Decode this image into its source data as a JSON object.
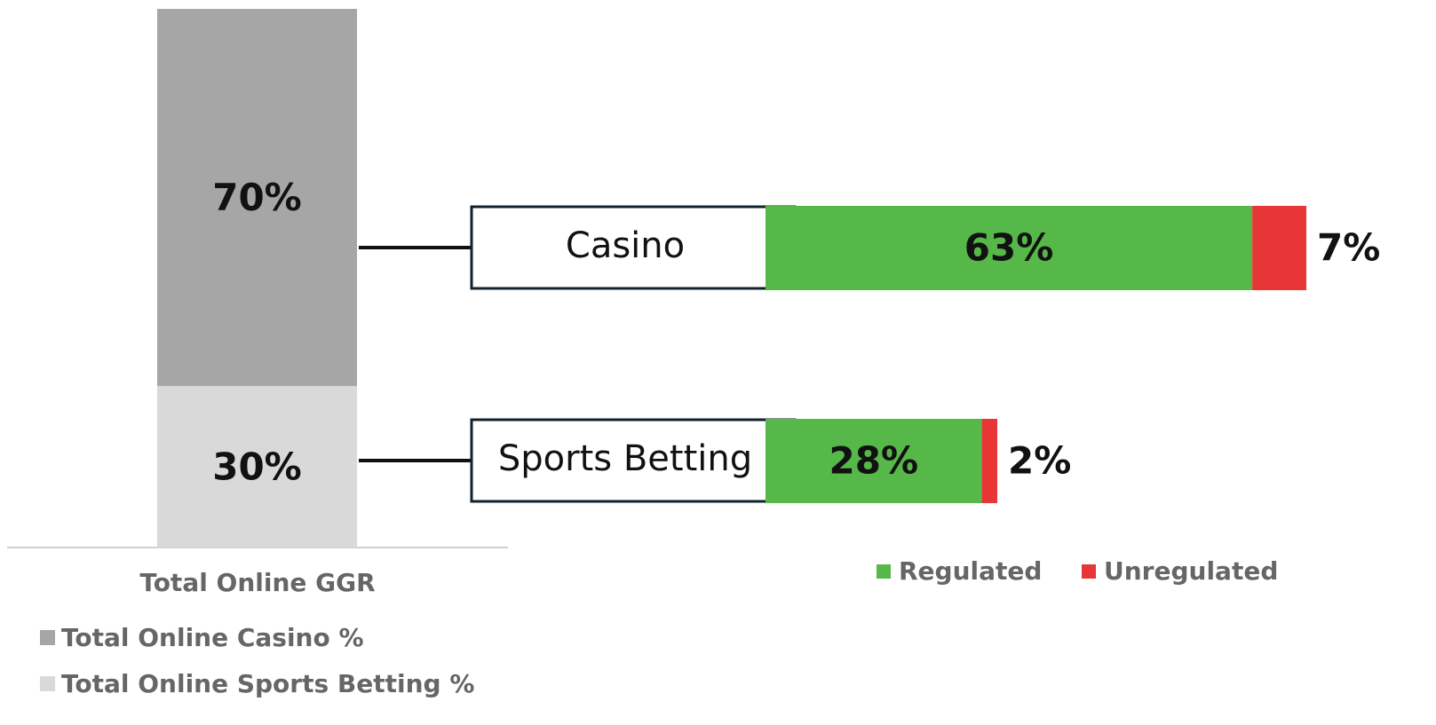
{
  "chart_data": [
    {
      "type": "stacked-bar",
      "categories": [
        "Total Online GGR"
      ],
      "series": [
        {
          "name": "Total Online Casino %",
          "color": "#a6a6a6",
          "values": [
            70
          ],
          "value_labels": [
            "70%"
          ]
        },
        {
          "name": "Total Online Sports Betting %",
          "color": "#d9d9d9",
          "values": [
            30
          ],
          "value_labels": [
            "30%"
          ]
        }
      ],
      "ylim": [
        0,
        100
      ]
    },
    {
      "type": "stacked-hbar",
      "categories": [
        "Casino",
        "Sports Betting"
      ],
      "series": [
        {
          "name": "Regulated",
          "color": "#55b848",
          "values": [
            63,
            28
          ],
          "value_labels": [
            "63%",
            "28%"
          ]
        },
        {
          "name": "Unregulated",
          "color": "#e83535",
          "values": [
            7,
            2
          ],
          "value_labels": [
            "7%",
            "2%"
          ]
        }
      ],
      "xlim": [
        0,
        80
      ]
    }
  ]
}
